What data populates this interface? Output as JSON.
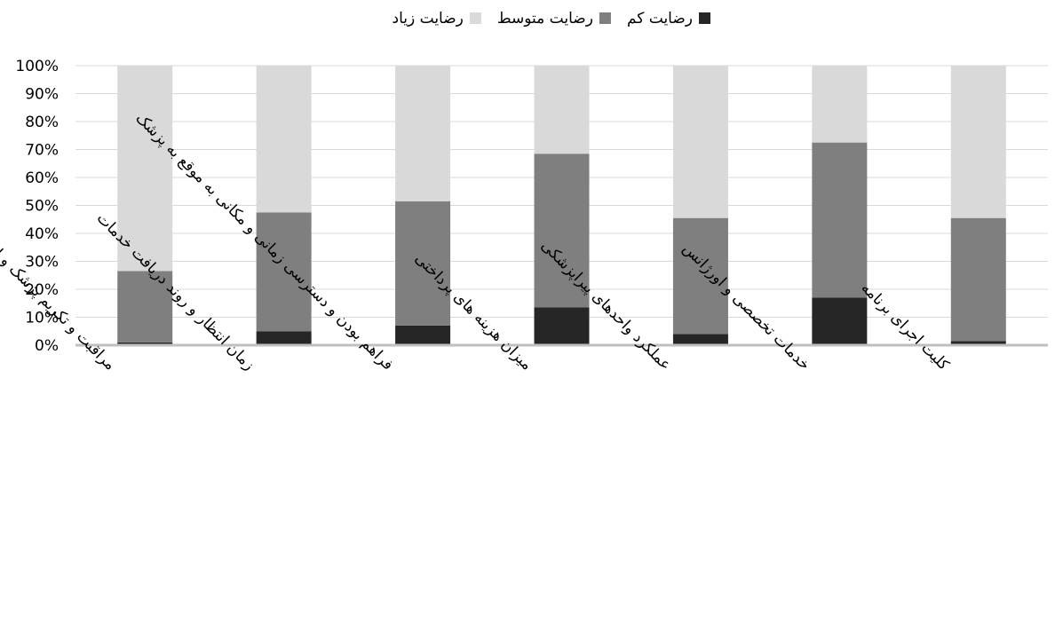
{
  "chart_data": {
    "type": "bar",
    "stacked": true,
    "percent_stacked": true,
    "categories": [
      "مراقبت و تکریم پزشک و اعتماد و اعتقاد به عملکرد وی",
      "زمان انتظار و روند دریافت خدمات",
      "فراهم بودن و دسترسی زمانی و مکانی به موقع به پزشک",
      "میزان هزینه های پرداختی",
      "عملکرد واحدهای پیراپزشکی",
      "خدمات تخصصی و اورژانس",
      "کلیت اجرای برنامه"
    ],
    "series": [
      {
        "name": "رضایت کم",
        "color": "#262626",
        "values": [
          1,
          5,
          7,
          13.5,
          4,
          17,
          1.5
        ]
      },
      {
        "name": "رضایت متوسط",
        "color": "#7f7f7f",
        "values": [
          25.5,
          42.5,
          44.5,
          55,
          41.5,
          55.5,
          44
        ]
      },
      {
        "name": "رضایت زیاد",
        "color": "#d9d9d9",
        "values": [
          73.5,
          52.5,
          48.5,
          31.5,
          54.5,
          27.5,
          54.5
        ]
      }
    ],
    "y_ticks": [
      "0%",
      "10%",
      "20%",
      "30%",
      "40%",
      "50%",
      "60%",
      "70%",
      "80%",
      "90%",
      "100%"
    ],
    "ylim": [
      0,
      100
    ],
    "grid": true,
    "legend_position": "top-center",
    "title": "",
    "xlabel": "",
    "ylabel": ""
  }
}
